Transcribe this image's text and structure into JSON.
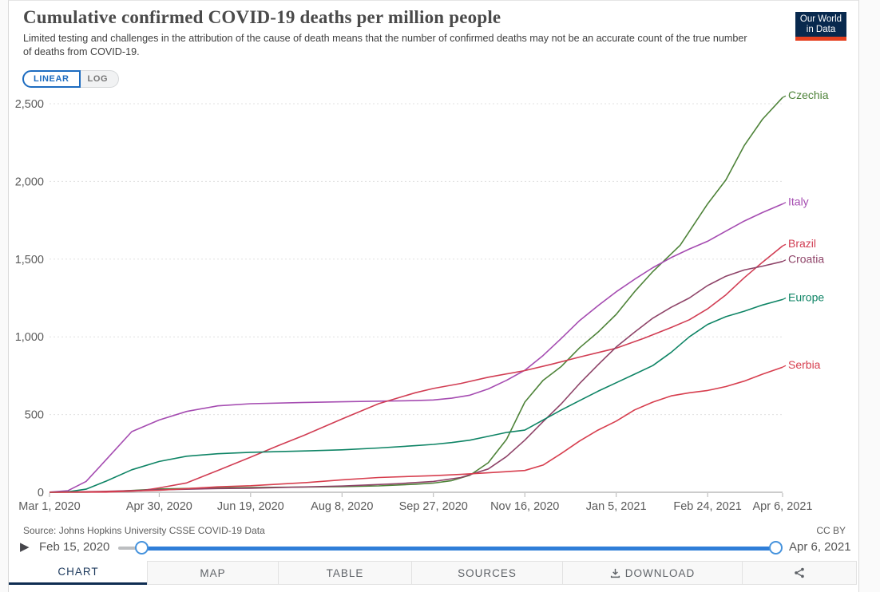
{
  "brand": {
    "logo_line1": "Our World",
    "logo_line2": "in Data",
    "navy": "#08294e",
    "red": "#e5401f"
  },
  "header": {
    "title": "Cumulative confirmed COVID-19 deaths per million people",
    "subtitle": "Limited testing and challenges in the attribution of the cause of death means that the number of confirmed deaths may not be an accurate count of the true number of deaths from COVID-19."
  },
  "controls": {
    "linear_label": "LINEAR",
    "log_label": "LOG"
  },
  "chart_data": {
    "type": "line",
    "title": "Cumulative confirmed COVID-19 deaths per million people",
    "x_domain_days": [
      0,
      401
    ],
    "y_range": [
      0,
      2500
    ],
    "grid": "dashed-horizontal",
    "legend_position": "right-end-labels",
    "y_axis": {
      "ticks": [
        {
          "value": 0,
          "label": "0"
        },
        {
          "value": 500,
          "label": "500"
        },
        {
          "value": 1000,
          "label": "1,000"
        },
        {
          "value": 1500,
          "label": "1,500"
        },
        {
          "value": 2000,
          "label": "2,000"
        },
        {
          "value": 2500,
          "label": "2,500"
        }
      ]
    },
    "x_axis": {
      "ticks": [
        {
          "day": 0,
          "label": "Mar 1, 2020"
        },
        {
          "day": 60,
          "label": "Apr 30, 2020"
        },
        {
          "day": 110,
          "label": "Jun 19, 2020"
        },
        {
          "day": 160,
          "label": "Aug 8, 2020"
        },
        {
          "day": 210,
          "label": "Sep 27, 2020"
        },
        {
          "day": 260,
          "label": "Nov 16, 2020"
        },
        {
          "day": 310,
          "label": "Jan 5, 2021"
        },
        {
          "day": 360,
          "label": "Feb 24, 2021"
        },
        {
          "day": 401,
          "label": "Apr 6, 2021"
        }
      ]
    },
    "series": [
      {
        "name": "Czechia",
        "color": "#4e8339",
        "points": [
          [
            0,
            0
          ],
          [
            20,
            1
          ],
          [
            31,
            3
          ],
          [
            60,
            21
          ],
          [
            92,
            28
          ],
          [
            110,
            31
          ],
          [
            140,
            34
          ],
          [
            160,
            36
          ],
          [
            180,
            41
          ],
          [
            200,
            52
          ],
          [
            210,
            59
          ],
          [
            220,
            75
          ],
          [
            230,
            110
          ],
          [
            240,
            190
          ],
          [
            250,
            340
          ],
          [
            260,
            580
          ],
          [
            270,
            720
          ],
          [
            280,
            810
          ],
          [
            290,
            930
          ],
          [
            300,
            1030
          ],
          [
            310,
            1145
          ],
          [
            320,
            1290
          ],
          [
            330,
            1420
          ],
          [
            345,
            1590
          ],
          [
            360,
            1855
          ],
          [
            370,
            2010
          ],
          [
            380,
            2230
          ],
          [
            390,
            2400
          ],
          [
            401,
            2540
          ]
        ]
      },
      {
        "name": "Italy",
        "color": "#a54cb1",
        "points": [
          [
            0,
            1
          ],
          [
            10,
            10
          ],
          [
            20,
            70
          ],
          [
            31,
            210
          ],
          [
            45,
            390
          ],
          [
            60,
            465
          ],
          [
            75,
            520
          ],
          [
            92,
            556
          ],
          [
            110,
            570
          ],
          [
            140,
            578
          ],
          [
            160,
            582
          ],
          [
            180,
            586
          ],
          [
            200,
            590
          ],
          [
            210,
            594
          ],
          [
            220,
            605
          ],
          [
            230,
            625
          ],
          [
            240,
            665
          ],
          [
            250,
            720
          ],
          [
            260,
            785
          ],
          [
            270,
            880
          ],
          [
            280,
            990
          ],
          [
            290,
            1105
          ],
          [
            300,
            1200
          ],
          [
            310,
            1290
          ],
          [
            320,
            1370
          ],
          [
            330,
            1445
          ],
          [
            340,
            1510
          ],
          [
            350,
            1565
          ],
          [
            360,
            1615
          ],
          [
            370,
            1680
          ],
          [
            380,
            1745
          ],
          [
            390,
            1800
          ],
          [
            401,
            1855
          ]
        ]
      },
      {
        "name": "Brazil",
        "color": "#d13d53",
        "points": [
          [
            0,
            0
          ],
          [
            31,
            1
          ],
          [
            50,
            10
          ],
          [
            60,
            28
          ],
          [
            75,
            60
          ],
          [
            92,
            140
          ],
          [
            110,
            226
          ],
          [
            125,
            300
          ],
          [
            140,
            370
          ],
          [
            160,
            472
          ],
          [
            180,
            570
          ],
          [
            200,
            640
          ],
          [
            210,
            668
          ],
          [
            225,
            700
          ],
          [
            240,
            740
          ],
          [
            260,
            783
          ],
          [
            275,
            825
          ],
          [
            290,
            870
          ],
          [
            310,
            927
          ],
          [
            325,
            990
          ],
          [
            340,
            1060
          ],
          [
            350,
            1110
          ],
          [
            360,
            1180
          ],
          [
            370,
            1270
          ],
          [
            380,
            1380
          ],
          [
            390,
            1480
          ],
          [
            401,
            1585
          ]
        ]
      },
      {
        "name": "Croatia",
        "color": "#8e4368",
        "points": [
          [
            0,
            0
          ],
          [
            31,
            6
          ],
          [
            60,
            16
          ],
          [
            92,
            24
          ],
          [
            110,
            26
          ],
          [
            160,
            40
          ],
          [
            190,
            55
          ],
          [
            210,
            70
          ],
          [
            225,
            95
          ],
          [
            240,
            150
          ],
          [
            250,
            230
          ],
          [
            260,
            335
          ],
          [
            270,
            455
          ],
          [
            280,
            570
          ],
          [
            290,
            700
          ],
          [
            300,
            820
          ],
          [
            310,
            935
          ],
          [
            320,
            1030
          ],
          [
            330,
            1120
          ],
          [
            340,
            1190
          ],
          [
            350,
            1250
          ],
          [
            360,
            1330
          ],
          [
            370,
            1390
          ],
          [
            380,
            1430
          ],
          [
            390,
            1455
          ],
          [
            401,
            1485
          ]
        ]
      },
      {
        "name": "Europe",
        "color": "#0e8465",
        "points": [
          [
            0,
            0
          ],
          [
            10,
            3
          ],
          [
            20,
            20
          ],
          [
            31,
            72
          ],
          [
            45,
            145
          ],
          [
            60,
            198
          ],
          [
            75,
            232
          ],
          [
            92,
            248
          ],
          [
            110,
            257
          ],
          [
            140,
            266
          ],
          [
            160,
            273
          ],
          [
            180,
            285
          ],
          [
            200,
            300
          ],
          [
            210,
            308
          ],
          [
            220,
            320
          ],
          [
            230,
            335
          ],
          [
            240,
            360
          ],
          [
            250,
            385
          ],
          [
            260,
            400
          ],
          [
            270,
            465
          ],
          [
            280,
            530
          ],
          [
            290,
            590
          ],
          [
            300,
            650
          ],
          [
            310,
            705
          ],
          [
            320,
            760
          ],
          [
            330,
            815
          ],
          [
            340,
            900
          ],
          [
            350,
            1000
          ],
          [
            360,
            1080
          ],
          [
            370,
            1130
          ],
          [
            380,
            1165
          ],
          [
            390,
            1205
          ],
          [
            401,
            1240
          ]
        ]
      },
      {
        "name": "Serbia",
        "color": "#d73e4e",
        "points": [
          [
            0,
            0
          ],
          [
            31,
            4
          ],
          [
            60,
            13
          ],
          [
            92,
            35
          ],
          [
            110,
            42
          ],
          [
            140,
            62
          ],
          [
            160,
            80
          ],
          [
            180,
            95
          ],
          [
            200,
            103
          ],
          [
            210,
            107
          ],
          [
            225,
            115
          ],
          [
            240,
            125
          ],
          [
            260,
            140
          ],
          [
            270,
            175
          ],
          [
            280,
            250
          ],
          [
            290,
            330
          ],
          [
            300,
            400
          ],
          [
            310,
            458
          ],
          [
            320,
            530
          ],
          [
            330,
            580
          ],
          [
            340,
            620
          ],
          [
            350,
            640
          ],
          [
            360,
            655
          ],
          [
            370,
            680
          ],
          [
            380,
            715
          ],
          [
            390,
            760
          ],
          [
            401,
            805
          ]
        ]
      }
    ]
  },
  "footer": {
    "source": "Source: Johns Hopkins University CSSE COVID-19 Data",
    "license": "CC BY"
  },
  "timeline": {
    "play_icon": "▶",
    "start_label": "Feb 15, 2020",
    "end_label": "Apr 6, 2021",
    "accent": "#2f7ed8"
  },
  "tabs": {
    "chart": "CHART",
    "map": "MAP",
    "table": "TABLE",
    "sources": "SOURCES",
    "download": "DOWNLOAD",
    "share_icon": "share-icon",
    "download_icon": "download-icon"
  }
}
